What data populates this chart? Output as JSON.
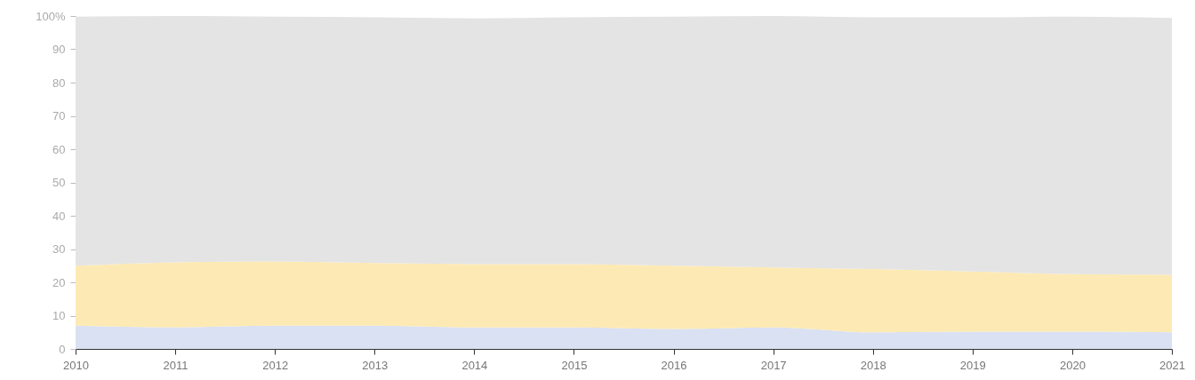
{
  "chart_data": {
    "type": "area",
    "stacked": true,
    "x": [
      2010,
      2011,
      2012,
      2013,
      2014,
      2015,
      2016,
      2017,
      2018,
      2019,
      2020,
      2021
    ],
    "xlim": [
      2010,
      2021
    ],
    "xticks": [
      2010,
      2011,
      2012,
      2013,
      2014,
      2015,
      2016,
      2017,
      2018,
      2019,
      2020,
      2021
    ],
    "ylim": [
      0,
      100
    ],
    "yticks": [
      0,
      10,
      20,
      30,
      40,
      50,
      60,
      70,
      80,
      90,
      {
        "value": 100,
        "label": "100%"
      }
    ],
    "grid": false,
    "legend": false,
    "series": [
      {
        "color": "#d9e1f2",
        "values": [
          7,
          6.5,
          7,
          7,
          6.5,
          6.5,
          6,
          6.5,
          5,
          5.2,
          5.2,
          5
        ]
      },
      {
        "color": "#fde9b3",
        "values": [
          18,
          19.5,
          19.3,
          18.8,
          19,
          19,
          19,
          18,
          19,
          18.1,
          17.3,
          17.3
        ]
      },
      {
        "color": "#e4e4e4",
        "values": [
          74.8,
          74,
          73.5,
          73.8,
          73.8,
          74.1,
          74.8,
          75.5,
          75.6,
          76.3,
          77.3,
          77.1
        ]
      }
    ]
  }
}
